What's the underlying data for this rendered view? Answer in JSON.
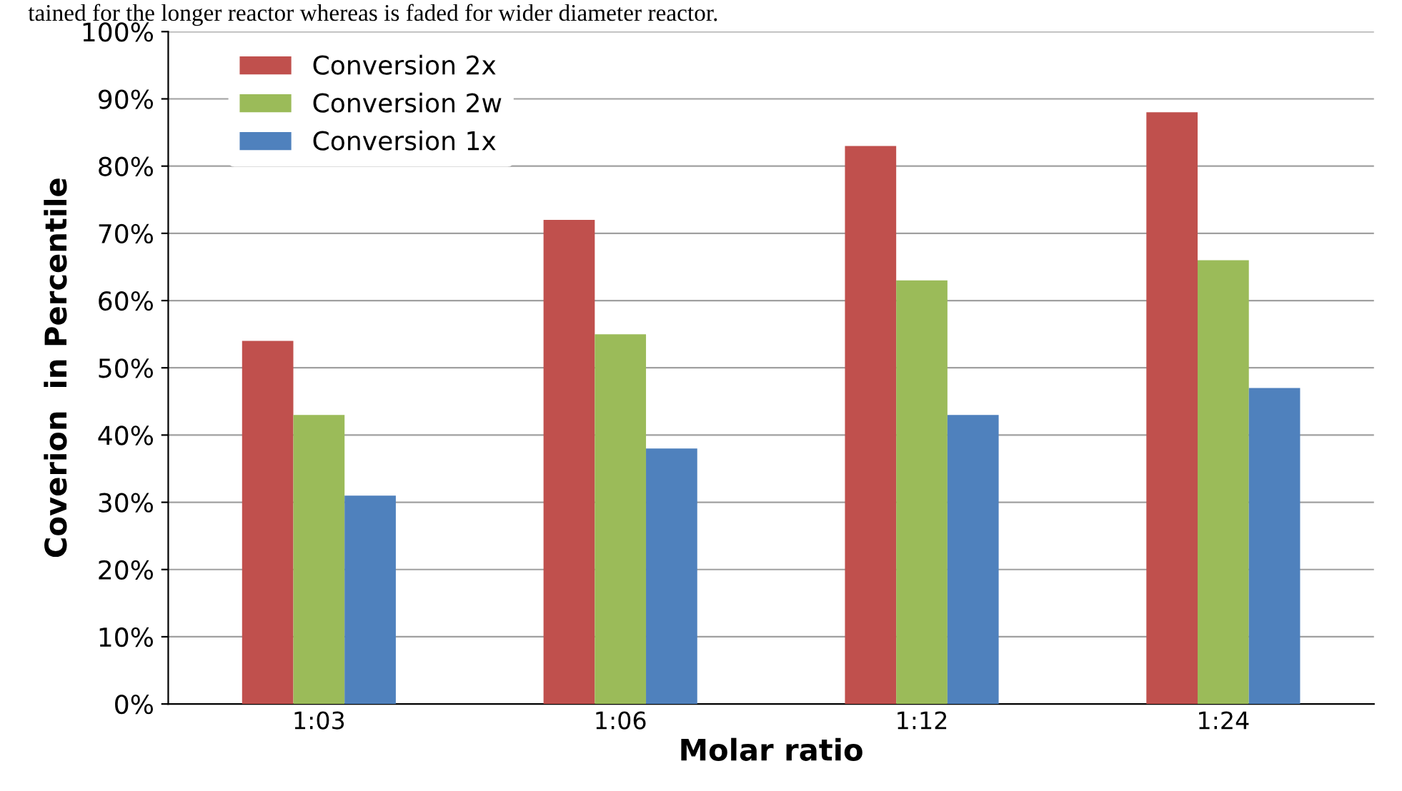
{
  "chart_data": {
    "type": "bar",
    "categories": [
      "1:03",
      "1:06",
      "1:12",
      "1:24"
    ],
    "series": [
      {
        "name": "Conversion 2x",
        "color": "#c0504d",
        "values": [
          54,
          72,
          83,
          88
        ]
      },
      {
        "name": "Conversion 2w",
        "color": "#9bbb59",
        "values": [
          43,
          55,
          63,
          66
        ]
      },
      {
        "name": "Conversion 1x",
        "color": "#4f81bd",
        "values": [
          31,
          38,
          43,
          47
        ]
      }
    ],
    "xlabel": "Molar ratio",
    "ylabel": "Coverion  in Percentile",
    "annotations": [
      "tained for the longer reactor whereas is faded for wider diameter reactor."
    ],
    "ylim": [
      0,
      100
    ],
    "yticks": [
      {
        "value": 0,
        "label": "0%"
      },
      {
        "value": 10,
        "label": "10%"
      },
      {
        "value": 20,
        "label": "20%"
      },
      {
        "value": 30,
        "label": "30%"
      },
      {
        "value": 40,
        "label": "40%"
      },
      {
        "value": 50,
        "label": "50%"
      },
      {
        "value": 60,
        "label": "60%"
      },
      {
        "value": 70,
        "label": "70%"
      },
      {
        "value": 80,
        "label": "80%"
      },
      {
        "value": 90,
        "label": "90%"
      },
      {
        "value": 100,
        "label": "100%"
      }
    ],
    "grid": "y",
    "legend": "top left"
  }
}
